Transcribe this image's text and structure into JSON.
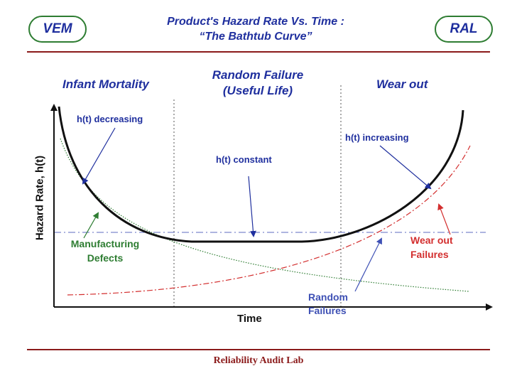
{
  "header": {
    "left_badge": "VEM",
    "right_badge": "RAL",
    "title_line1": "Product's Hazard Rate Vs. Time :",
    "title_line2": "“The Bathtub Curve”"
  },
  "regions": {
    "infant": "Infant Mortality",
    "random_line1": "Random Failure",
    "random_line2": "(Useful Life)",
    "wear": "Wear out"
  },
  "notes": {
    "decreasing": "h(t) decreasing",
    "constant": "h(t) constant",
    "increasing": "h(t) increasing"
  },
  "labels": {
    "manufacturing_line1": "Manufacturing",
    "manufacturing_line2": "Defects",
    "wearout_line1": "Wear out",
    "wearout_line2": "Failures",
    "random_line1": "Random",
    "random_line2": "Failures"
  },
  "axes": {
    "y_label": "Hazard Rate, h(t)",
    "x_label": "Time"
  },
  "colors": {
    "text_blue": "#1f2f9e",
    "manufacturing": "#2e7d32",
    "wearout": "#d32f2f",
    "random": "#3f51b5",
    "footer": "#8b1a1a"
  },
  "footer": {
    "text": "Reliability Audit Lab"
  }
}
